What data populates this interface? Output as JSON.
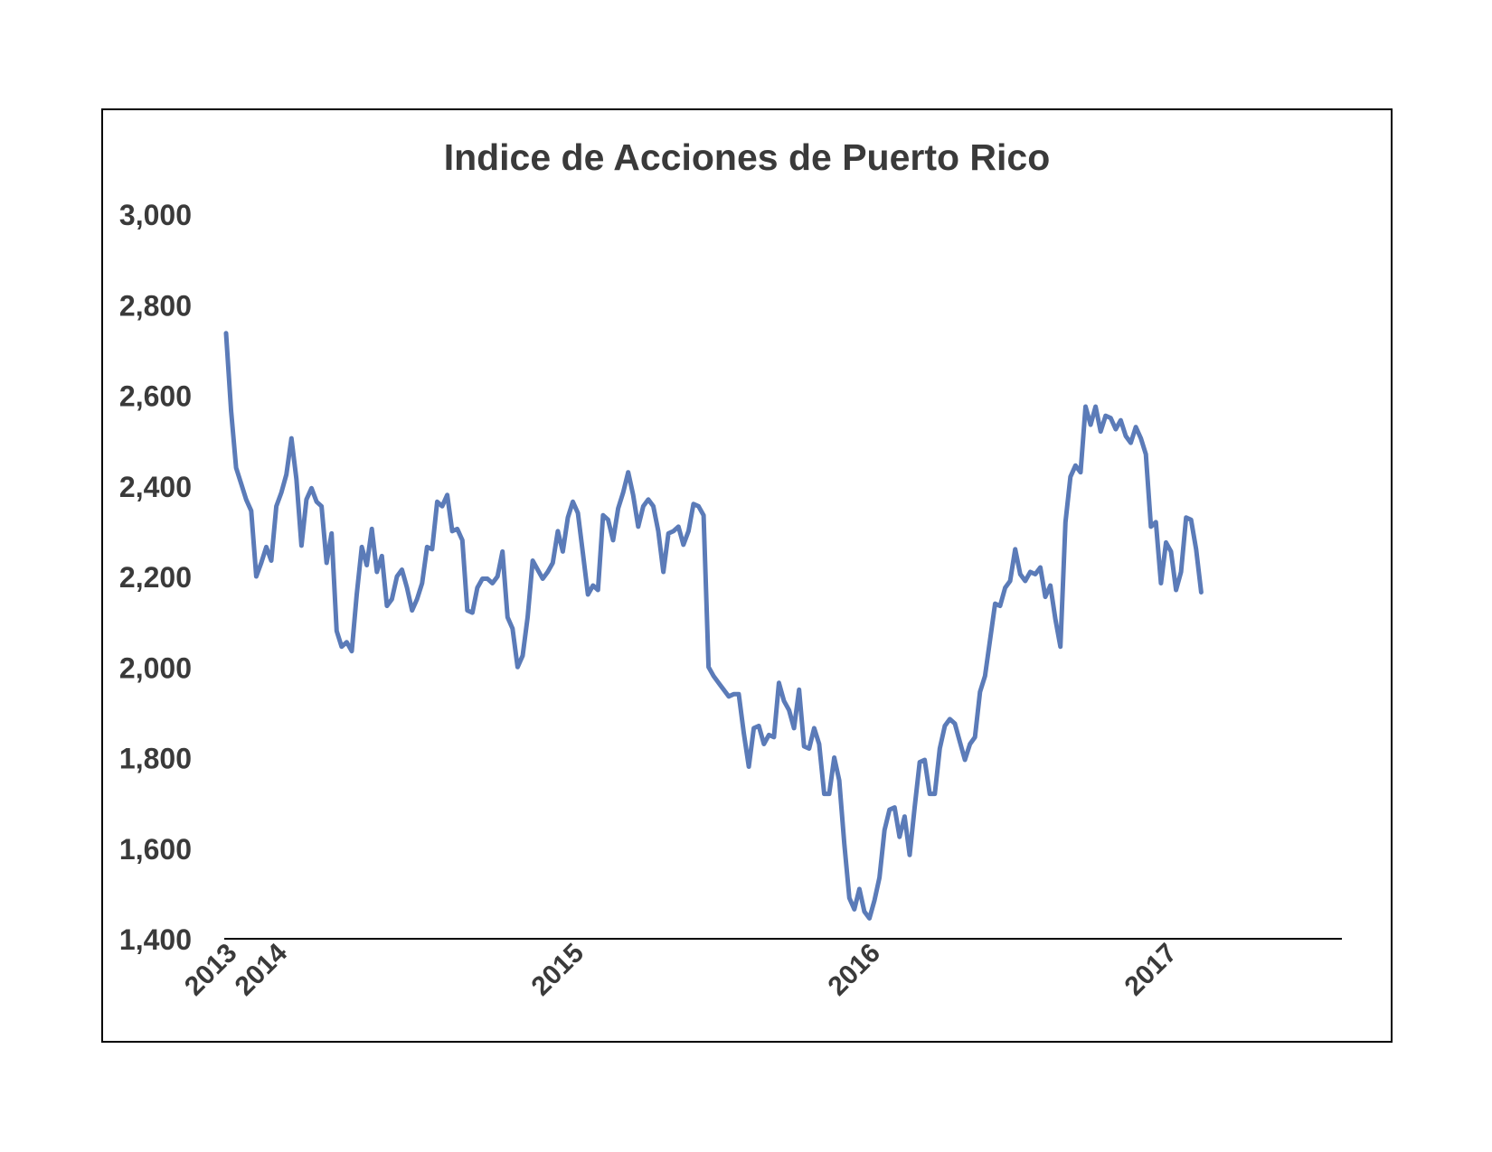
{
  "chart_data": {
    "type": "line",
    "title": "Indice de Acciones de Puerto Rico",
    "xlabel": "",
    "ylabel": "",
    "ylim": [
      1400,
      3000
    ],
    "y_ticks": [
      "1,400",
      "1,600",
      "1,800",
      "2,000",
      "2,200",
      "2,400",
      "2,600",
      "2,800",
      "3,000"
    ],
    "y_tick_values": [
      1400,
      1600,
      1800,
      2000,
      2200,
      2400,
      2600,
      2800,
      3000
    ],
    "x_ticks": [
      "2013",
      "2014",
      "2015",
      "2016",
      "2017"
    ],
    "x_tick_values": [
      0,
      10,
      69,
      128,
      187
    ],
    "x_range": [
      0,
      222
    ],
    "grid": false,
    "legend": "none",
    "line_color": "#5b7bb8",
    "series": [
      {
        "values": [
          2737,
          2565,
          2440,
          2405,
          2370,
          2345,
          2200,
          2230,
          2265,
          2235,
          2355,
          2385,
          2425,
          2505,
          2415,
          2268,
          2370,
          2395,
          2365,
          2355,
          2230,
          2295,
          2080,
          2045,
          2055,
          2035,
          2160,
          2265,
          2225,
          2305,
          2210,
          2245,
          2135,
          2150,
          2200,
          2215,
          2175,
          2125,
          2150,
          2185,
          2265,
          2260,
          2365,
          2355,
          2380,
          2300,
          2305,
          2280,
          2125,
          2120,
          2175,
          2195,
          2195,
          2185,
          2200,
          2255,
          2110,
          2085,
          2000,
          2025,
          2110,
          2235,
          2215,
          2195,
          2210,
          2230,
          2300,
          2255,
          2330,
          2365,
          2340,
          2250,
          2160,
          2180,
          2170,
          2335,
          2325,
          2280,
          2350,
          2385,
          2430,
          2380,
          2310,
          2355,
          2370,
          2355,
          2300,
          2210,
          2295,
          2300,
          2310,
          2270,
          2300,
          2360,
          2355,
          2335,
          2000,
          1980,
          1965,
          1950,
          1935,
          1940,
          1940,
          1855,
          1780,
          1865,
          1870,
          1830,
          1850,
          1845,
          1965,
          1925,
          1905,
          1865,
          1950,
          1825,
          1820,
          1865,
          1830,
          1720,
          1720,
          1800,
          1750,
          1610,
          1490,
          1465,
          1510,
          1460,
          1445,
          1485,
          1535,
          1640,
          1685,
          1690,
          1625,
          1670,
          1585,
          1690,
          1790,
          1795,
          1720,
          1720,
          1820,
          1870,
          1885,
          1875,
          1835,
          1795,
          1830,
          1845,
          1945,
          1980,
          2060,
          2140,
          2135,
          2175,
          2190,
          2260,
          2205,
          2190,
          2210,
          2205,
          2220,
          2155,
          2180,
          2105,
          2045,
          2320,
          2420,
          2445,
          2430,
          2575,
          2535,
          2575,
          2520,
          2555,
          2550,
          2525,
          2545,
          2510,
          2495,
          2530,
          2505,
          2470,
          2310,
          2320,
          2185,
          2275,
          2255,
          2170,
          2210,
          2330,
          2325,
          2260,
          2165
        ]
      }
    ]
  }
}
